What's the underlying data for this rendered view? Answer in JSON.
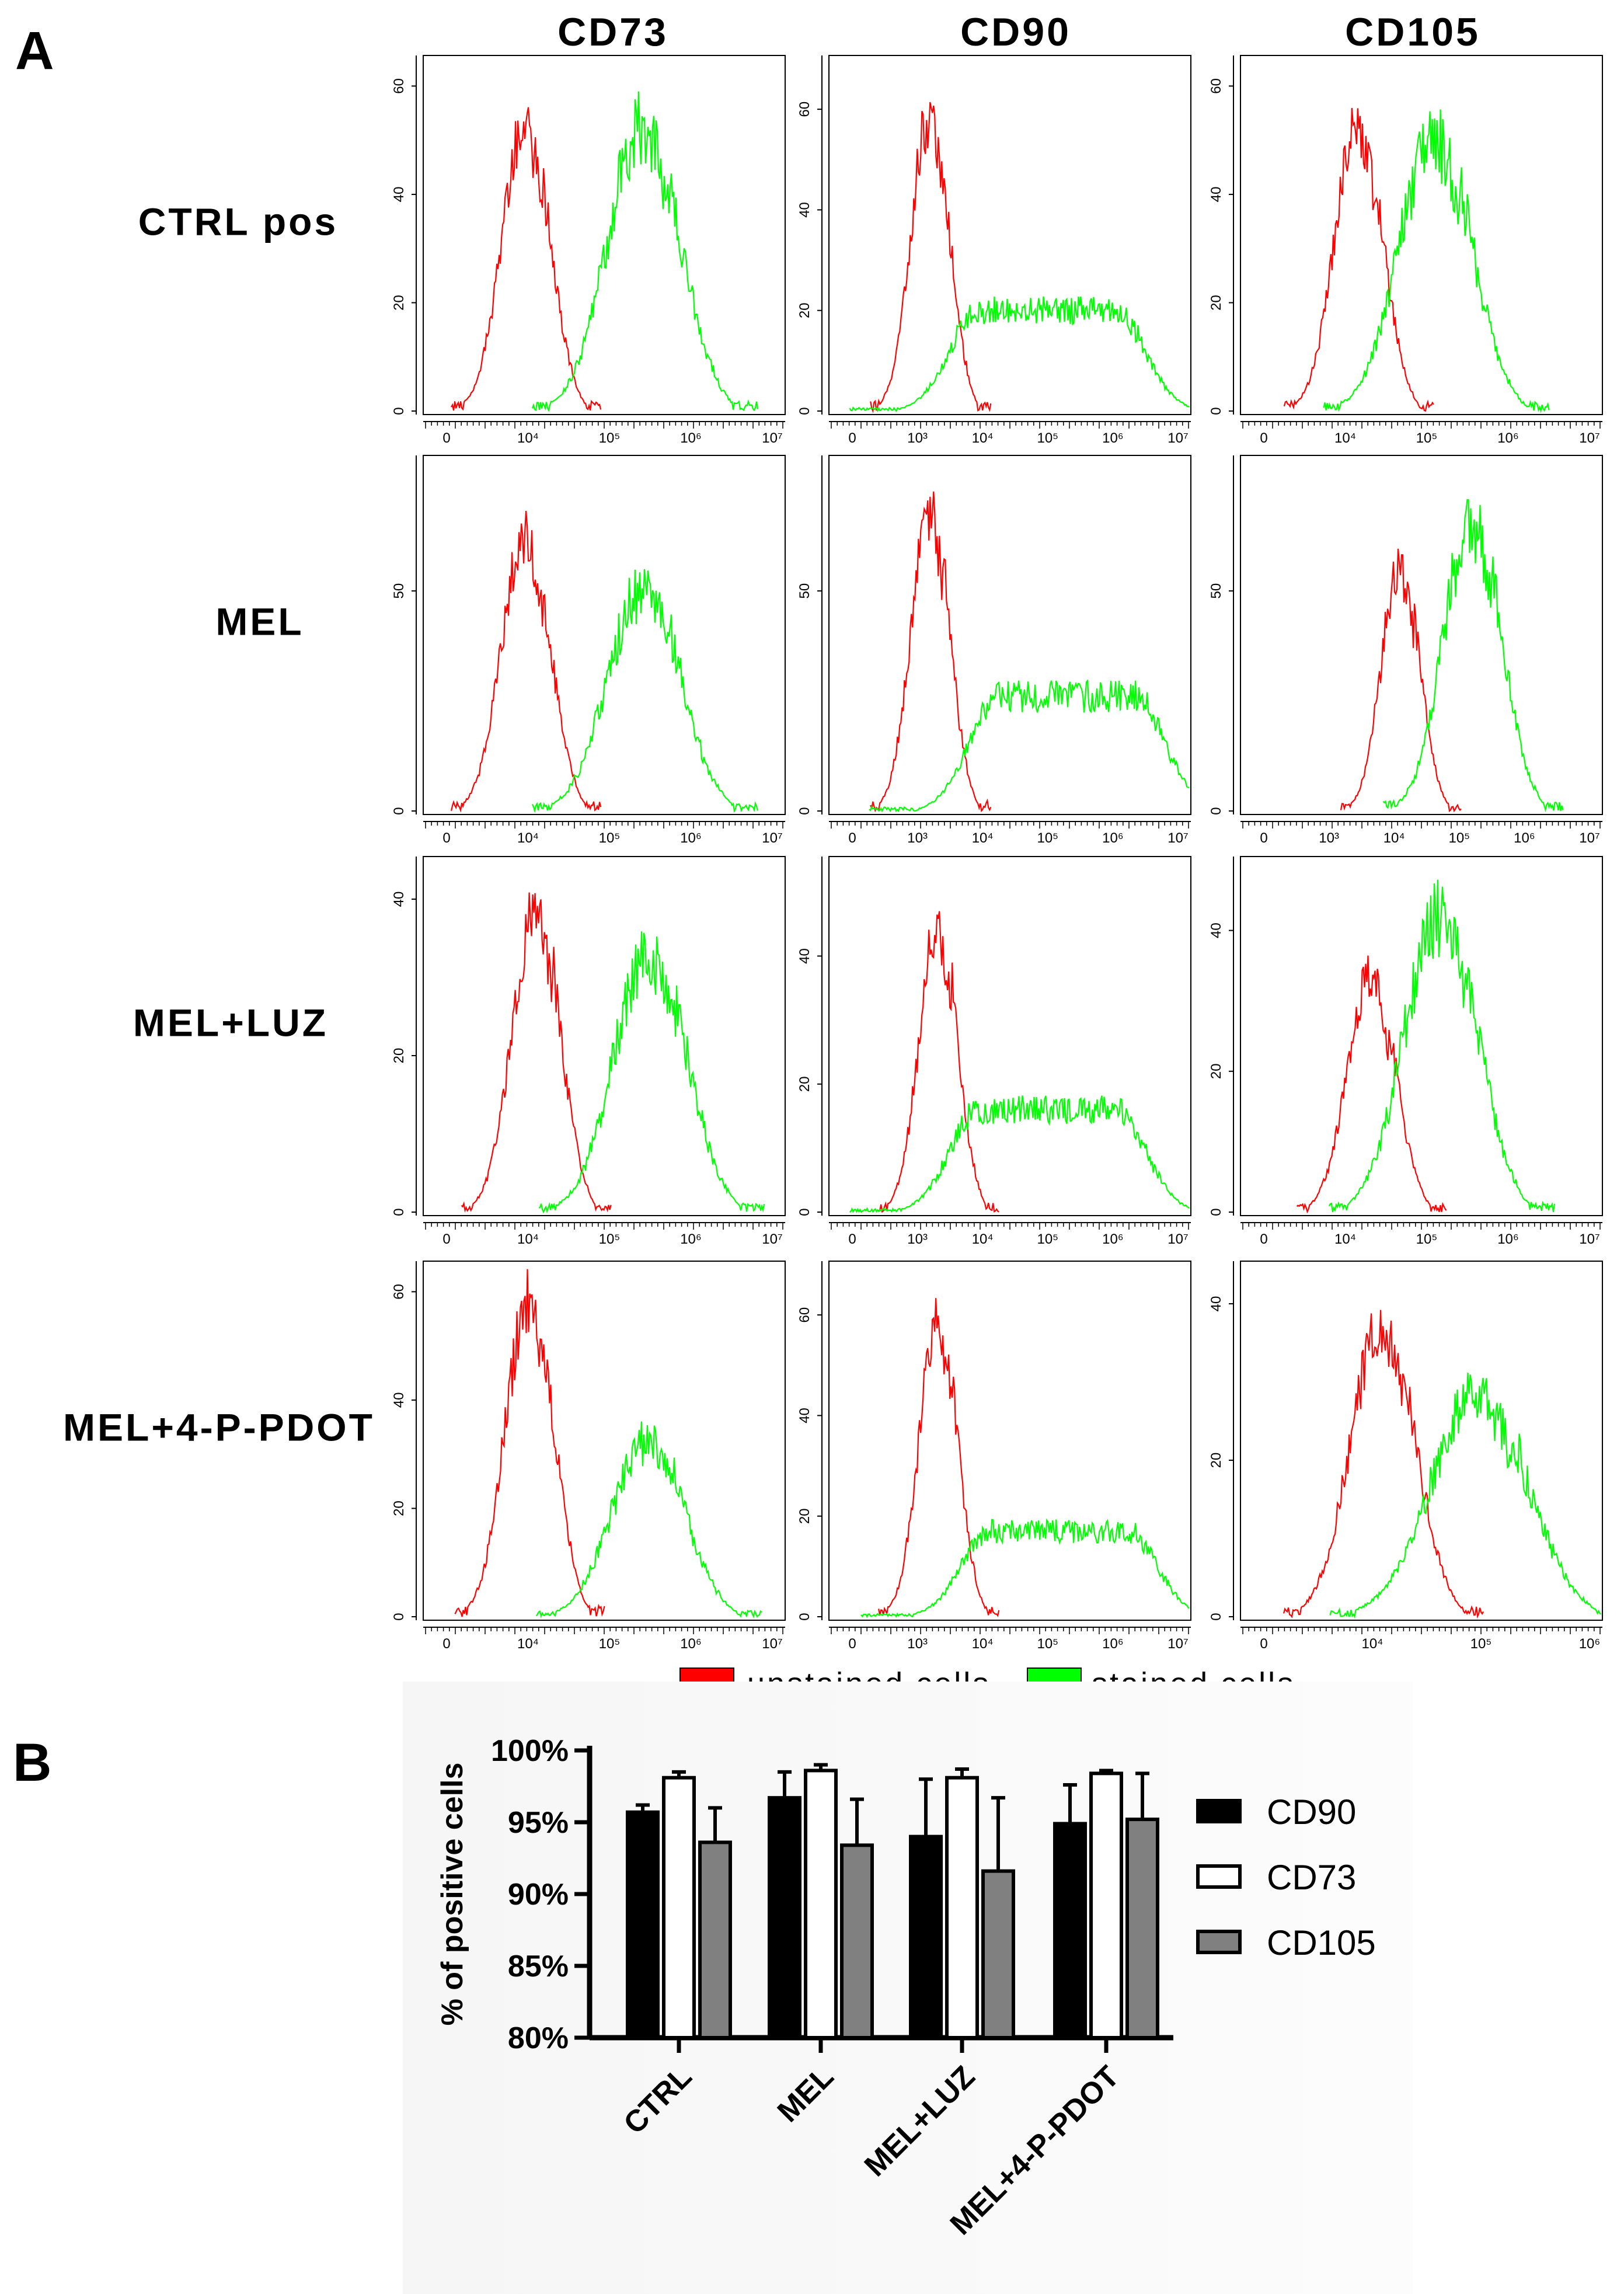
{
  "panel_a": {
    "letter": "A",
    "columns": [
      "CD73",
      "CD90",
      "CD105"
    ],
    "rows": [
      "CTRL pos",
      "MEL",
      "MEL+LUZ",
      "MEL+4-P-PDOT"
    ],
    "legend": [
      {
        "label": "unstained cells",
        "color": "#ff0000"
      },
      {
        "label": "stained cells",
        "color": "#00ff00"
      }
    ]
  },
  "panel_b": {
    "letter": "B"
  },
  "chart_data": [
    {
      "type": "line",
      "x_scale": "log",
      "row": "CTRL pos",
      "column": "CD73",
      "ylim": [
        0,
        65
      ],
      "yticks": [
        "0",
        "20",
        "40",
        "60"
      ],
      "xticks": [
        "0",
        "10^4",
        "10^5",
        "10^6",
        "10^7"
      ],
      "series": [
        {
          "color": "#ff0000",
          "peak_x": 9000,
          "peak_y": 52
        },
        {
          "color": "#00ff00",
          "peak_x": 250000,
          "peak_y": 52
        }
      ]
    },
    {
      "type": "line",
      "x_scale": "log",
      "row": "CTRL pos",
      "column": "CD90",
      "ylim": [
        0,
        70
      ],
      "yticks": [
        "0",
        "20",
        "40",
        "60"
      ],
      "xticks": [
        "0",
        "10^3",
        "10^4",
        "10^5",
        "10^6",
        "10^7"
      ],
      "series": [
        {
          "color": "#ff0000",
          "peak_x": 1500,
          "peak_y": 58
        },
        {
          "color": "#00ff00",
          "peak_x": 100000,
          "peak_y": 20
        }
      ]
    },
    {
      "type": "line",
      "x_scale": "log",
      "row": "CTRL pos",
      "column": "CD105",
      "ylim": [
        0,
        65
      ],
      "yticks": [
        "0",
        "20",
        "40",
        "60"
      ],
      "xticks": [
        "0",
        "10^4",
        "10^5",
        "10^6",
        "10^7"
      ],
      "series": [
        {
          "color": "#ff0000",
          "peak_x": 14000,
          "peak_y": 52
        },
        {
          "color": "#00ff00",
          "peak_x": 120000,
          "peak_y": 50
        }
      ]
    },
    {
      "type": "line",
      "x_scale": "log",
      "row": "MEL",
      "column": "CD73",
      "ylim": [
        0,
        80
      ],
      "yticks": [
        "0",
        "50"
      ],
      "xticks": [
        "0",
        "10^4",
        "10^5",
        "10^6",
        "10^7"
      ],
      "series": [
        {
          "color": "#ff0000",
          "peak_x": 9000,
          "peak_y": 62
        },
        {
          "color": "#00ff00",
          "peak_x": 250000,
          "peak_y": 50
        }
      ]
    },
    {
      "type": "line",
      "x_scale": "log",
      "row": "MEL",
      "column": "CD90",
      "ylim": [
        0,
        80
      ],
      "yticks": [
        "0",
        "50"
      ],
      "xticks": [
        "0",
        "10^3",
        "10^4",
        "10^5",
        "10^6",
        "10^7"
      ],
      "series": [
        {
          "color": "#ff0000",
          "peak_x": 1500,
          "peak_y": 68
        },
        {
          "color": "#00ff00",
          "peak_x": 200000,
          "peak_y": 26
        }
      ]
    },
    {
      "type": "line",
      "x_scale": "log",
      "row": "MEL",
      "column": "CD105",
      "ylim": [
        0,
        80
      ],
      "yticks": [
        "0",
        "50"
      ],
      "xticks": [
        "0",
        "10^3",
        "10^4",
        "10^5",
        "10^6",
        "10^7"
      ],
      "series": [
        {
          "color": "#ff0000",
          "peak_x": 12000,
          "peak_y": 55
        },
        {
          "color": "#00ff00",
          "peak_x": 150000,
          "peak_y": 65
        }
      ]
    },
    {
      "type": "line",
      "x_scale": "log",
      "row": "MEL+LUZ",
      "column": "CD73",
      "ylim": [
        0,
        45
      ],
      "yticks": [
        "0",
        "20",
        "40"
      ],
      "xticks": [
        "0",
        "10^4",
        "10^5",
        "10^6",
        "10^7"
      ],
      "series": [
        {
          "color": "#ff0000",
          "peak_x": 12000,
          "peak_y": 38
        },
        {
          "color": "#00ff00",
          "peak_x": 300000,
          "peak_y": 33
        }
      ]
    },
    {
      "type": "line",
      "x_scale": "log",
      "row": "MEL+LUZ",
      "column": "CD90",
      "ylim": [
        0,
        55
      ],
      "yticks": [
        "0",
        "20",
        "40"
      ],
      "xticks": [
        "0",
        "10^3",
        "10^4",
        "10^5",
        "10^6",
        "10^7"
      ],
      "series": [
        {
          "color": "#ff0000",
          "peak_x": 2000,
          "peak_y": 44
        },
        {
          "color": "#00ff00",
          "peak_x": 100000,
          "peak_y": 16
        }
      ]
    },
    {
      "type": "line",
      "x_scale": "log",
      "row": "MEL+LUZ",
      "column": "CD105",
      "ylim": [
        0,
        50
      ],
      "yticks": [
        "0",
        "20",
        "40"
      ],
      "xticks": [
        "0",
        "10^4",
        "10^5",
        "10^6",
        "10^7"
      ],
      "series": [
        {
          "color": "#ff0000",
          "peak_x": 20000,
          "peak_y": 33
        },
        {
          "color": "#00ff00",
          "peak_x": 140000,
          "peak_y": 42
        }
      ]
    },
    {
      "type": "line",
      "x_scale": "log",
      "row": "MEL+4-P-PDOT",
      "column": "CD73",
      "ylim": [
        0,
        65
      ],
      "yticks": [
        "0",
        "20",
        "40",
        "60"
      ],
      "xticks": [
        "0",
        "10^4",
        "10^5",
        "10^6",
        "10^7"
      ],
      "series": [
        {
          "color": "#ff0000",
          "peak_x": 10000,
          "peak_y": 58
        },
        {
          "color": "#00ff00",
          "peak_x": 280000,
          "peak_y": 32
        }
      ]
    },
    {
      "type": "line",
      "x_scale": "log",
      "row": "MEL+4-P-PDOT",
      "column": "CD90",
      "ylim": [
        0,
        70
      ],
      "yticks": [
        "0",
        "20",
        "40",
        "60"
      ],
      "xticks": [
        "0",
        "10^3",
        "10^4",
        "10^5",
        "10^6",
        "10^7"
      ],
      "series": [
        {
          "color": "#ff0000",
          "peak_x": 2000,
          "peak_y": 58
        },
        {
          "color": "#00ff00",
          "peak_x": 150000,
          "peak_y": 17
        }
      ]
    },
    {
      "type": "line",
      "x_scale": "log",
      "row": "MEL+4-P-PDOT",
      "column": "CD105",
      "ylim": [
        0,
        45
      ],
      "yticks": [
        "0",
        "20",
        "40"
      ],
      "xticks": [
        "0",
        "10^4",
        "10^5",
        "10^6"
      ],
      "series": [
        {
          "color": "#ff0000",
          "peak_x": 12000,
          "peak_y": 37
        },
        {
          "color": "#00ff00",
          "peak_x": 90000,
          "peak_y": 28
        }
      ]
    },
    {
      "type": "bar",
      "ylabel": "% of positive cells",
      "ylim": [
        80,
        100
      ],
      "yticks": [
        "80%",
        "85%",
        "90%",
        "95%",
        "100%"
      ],
      "categories": [
        "CTRL",
        "MEL",
        "MEL+LUZ",
        "MEL+4-P-PDOT"
      ],
      "series": [
        {
          "name": "CD90",
          "color": "#000000",
          "values": [
            95.7,
            96.7,
            94.0,
            94.9
          ],
          "errors": [
            0.5,
            1.8,
            4.0,
            2.7
          ]
        },
        {
          "name": "CD73",
          "color": "#ffffff",
          "values": [
            98.1,
            98.6,
            98.1,
            98.4
          ],
          "errors": [
            0.4,
            0.4,
            0.6,
            0.2
          ]
        },
        {
          "name": "CD105",
          "color": "#808080",
          "values": [
            93.6,
            93.4,
            91.6,
            95.2
          ],
          "errors": [
            2.4,
            3.2,
            5.1,
            3.2
          ]
        }
      ]
    }
  ]
}
